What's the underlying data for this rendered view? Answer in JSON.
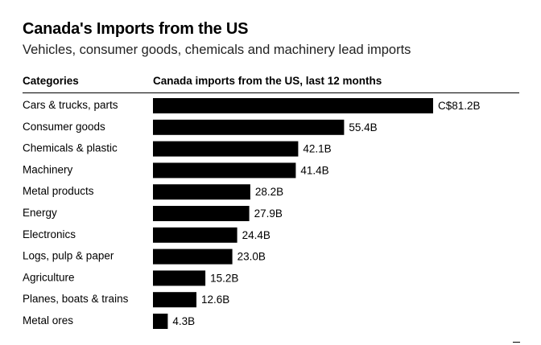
{
  "chart_data": {
    "type": "bar",
    "orientation": "horizontal",
    "title": "Canada's Imports from the US",
    "subtitle": "Vehicles, consumer goods, chemicals and machinery lead imports",
    "category_header": "Categories",
    "value_header": "Canada imports from the US, last 12 months",
    "unit": "C$ billions",
    "categories": [
      "Cars & trucks, parts",
      "Consumer goods",
      "Chemicals & plastic",
      "Machinery",
      "Metal products",
      "Energy",
      "Electronics",
      "Logs, pulp & paper",
      "Agriculture",
      "Planes, boats & trains",
      "Metal ores"
    ],
    "values": [
      81.2,
      55.4,
      42.1,
      41.4,
      28.2,
      27.9,
      24.4,
      23.0,
      15.2,
      12.6,
      4.3
    ],
    "value_labels": [
      "C$81.2B",
      "55.4B",
      "42.1B",
      "41.4B",
      "28.2B",
      "27.9B",
      "24.4B",
      "23.0B",
      "15.2B",
      "12.6B",
      "4.3B"
    ],
    "xlim": [
      0,
      81.2
    ],
    "bar_color": "#000000",
    "grid": false,
    "legend": "none"
  }
}
